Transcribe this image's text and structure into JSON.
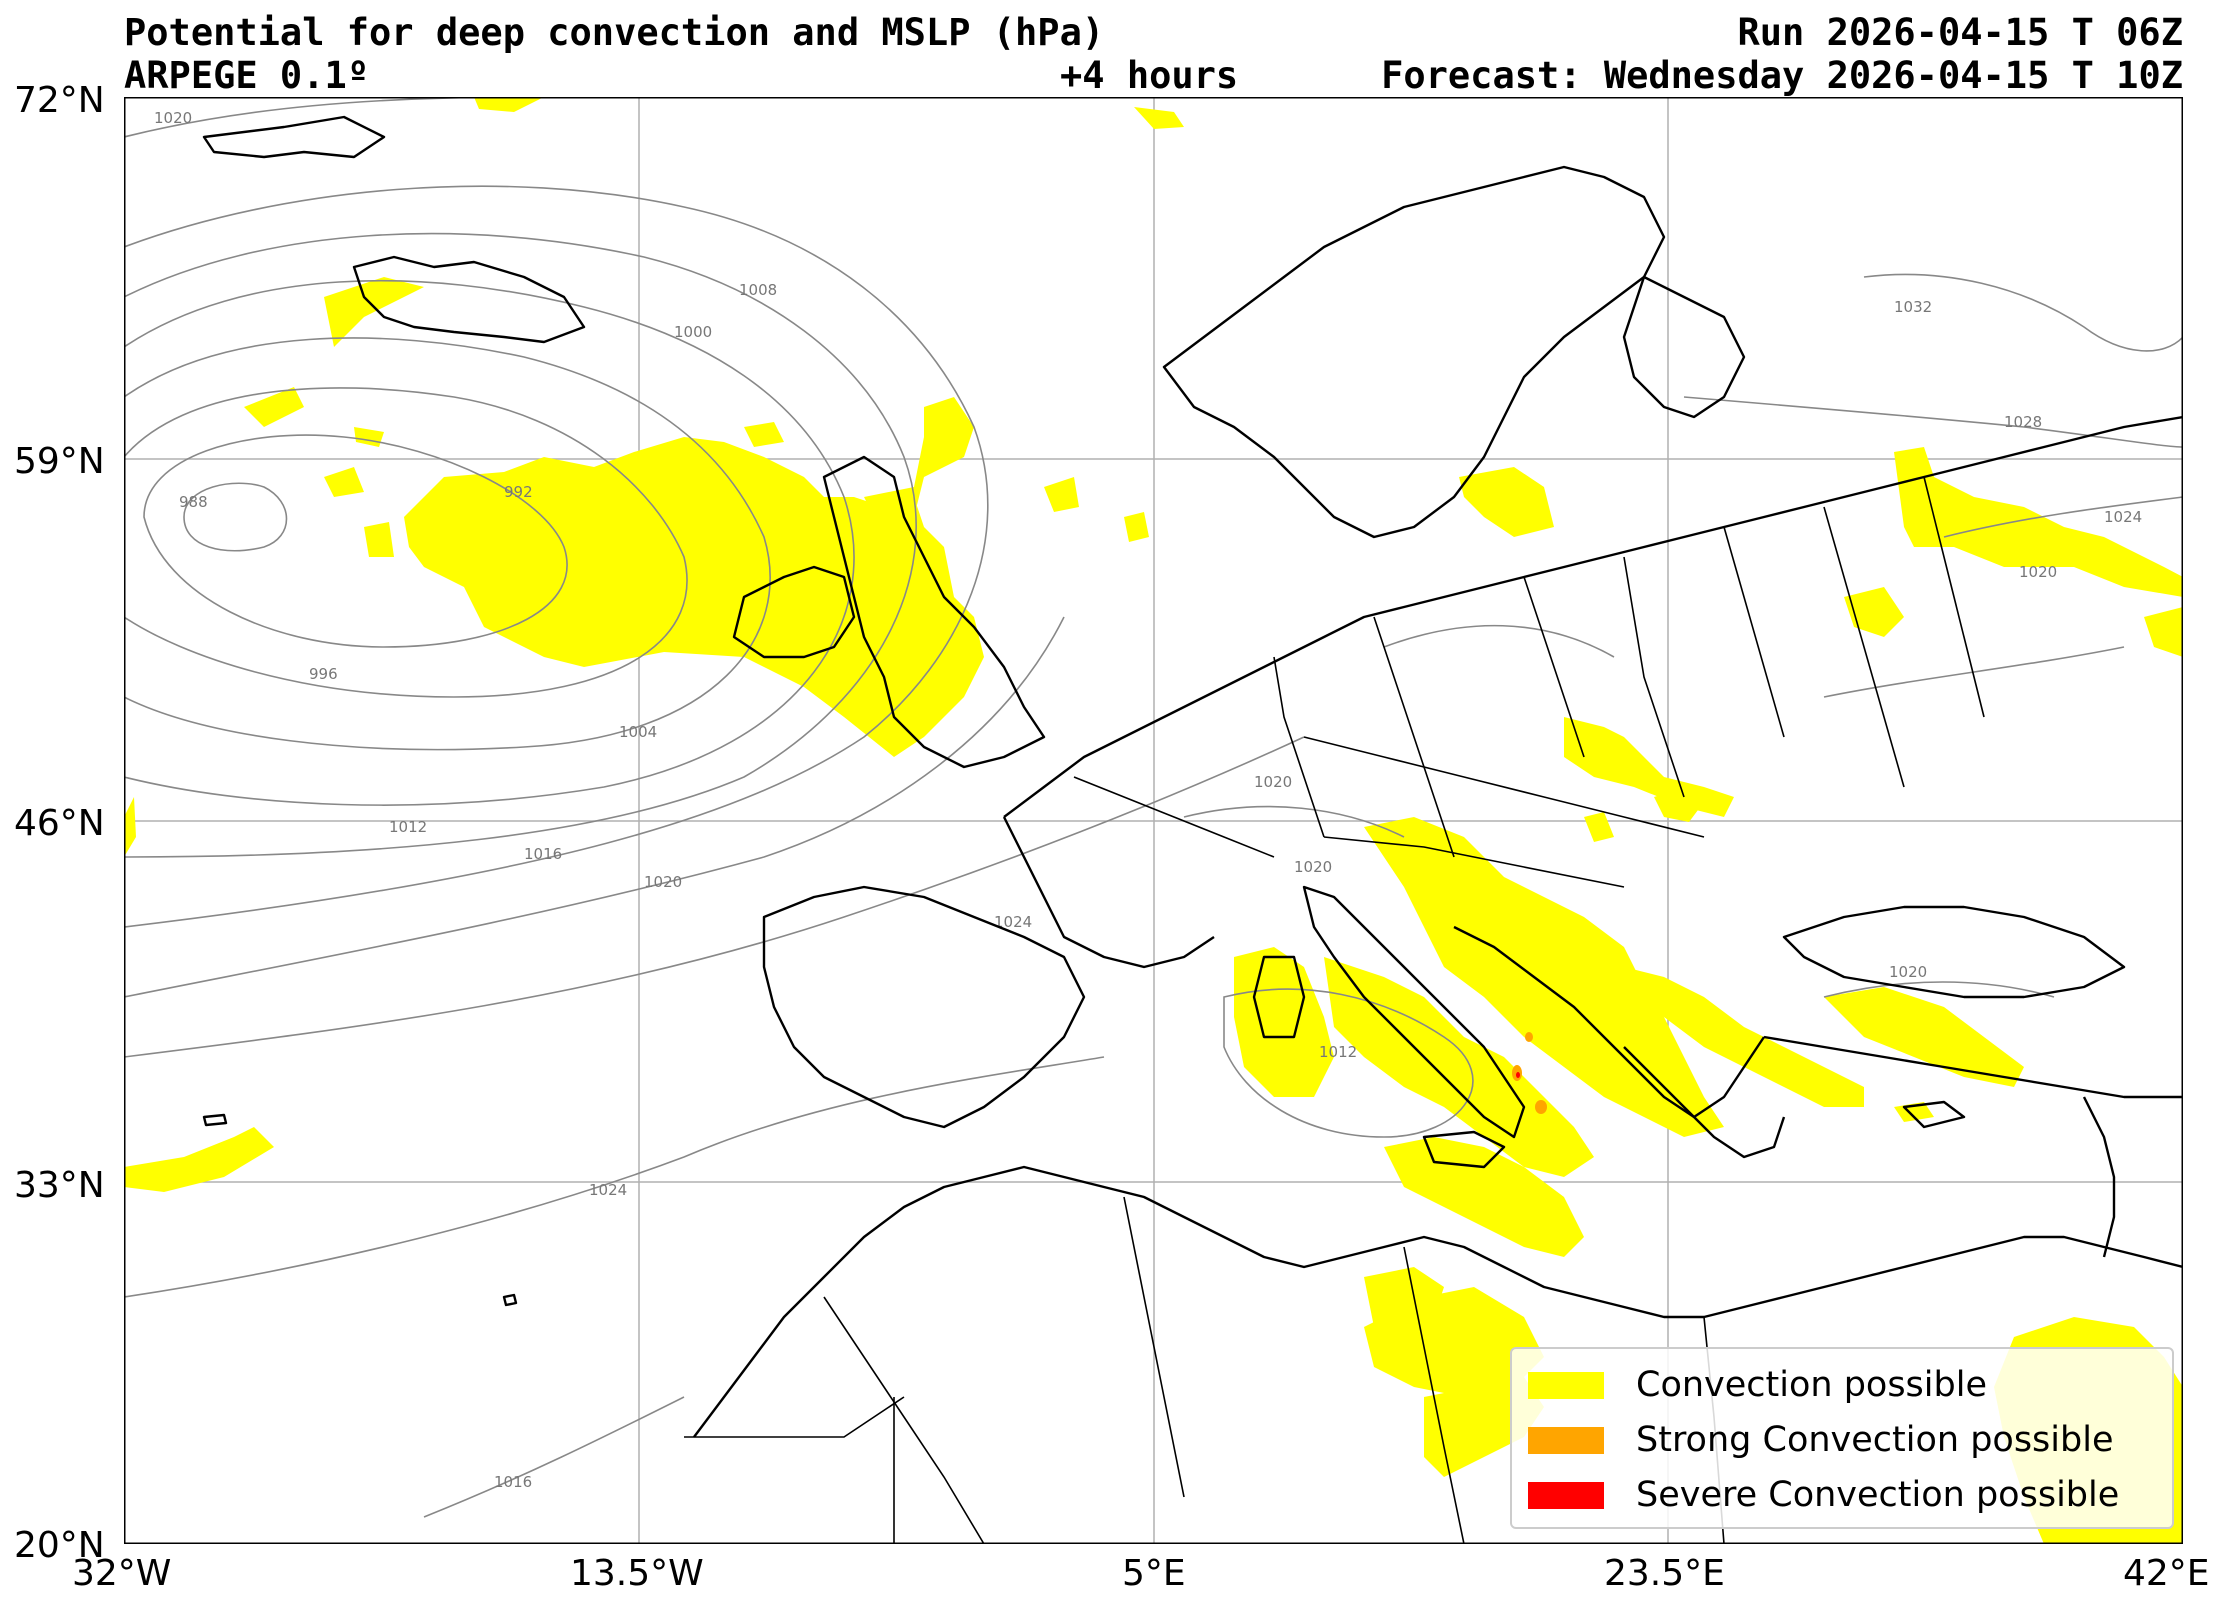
{
  "header": {
    "title": "Potential for deep convection and MSLP (hPa)",
    "model": "ARPEGE 0.1º",
    "lead_time": "+4 hours",
    "run": "Run 2026-04-15 T 06Z",
    "forecast": "Forecast: Wednesday 2026-04-15 T 10Z"
  },
  "axes": {
    "lat_labels": [
      "72°N",
      "59°N",
      "46°N",
      "33°N",
      "20°N"
    ],
    "lon_labels": [
      "32°W",
      "13.5°W",
      "5°E",
      "23.5°E",
      "42°E"
    ]
  },
  "isobar_labels": [
    "1020",
    "1008",
    "1000",
    "992",
    "988",
    "996",
    "1004",
    "1012",
    "1016",
    "1020",
    "1024",
    "1016",
    "1032",
    "1028",
    "1024",
    "1020",
    "1020",
    "1012",
    "1020",
    "1020",
    "1024"
  ],
  "legend": {
    "items": [
      {
        "label": "Convection possible",
        "color": "#ffff00"
      },
      {
        "label": "Strong Convection possible",
        "color": "#ffa500"
      },
      {
        "label": "Severe Convection possible",
        "color": "#ff0000"
      }
    ]
  },
  "colors": {
    "convection": "#ffff00",
    "strong": "#ffa500",
    "severe": "#ff0000",
    "isobar": "#888888",
    "coastline": "#000000",
    "grid": "#b0b0b0"
  }
}
